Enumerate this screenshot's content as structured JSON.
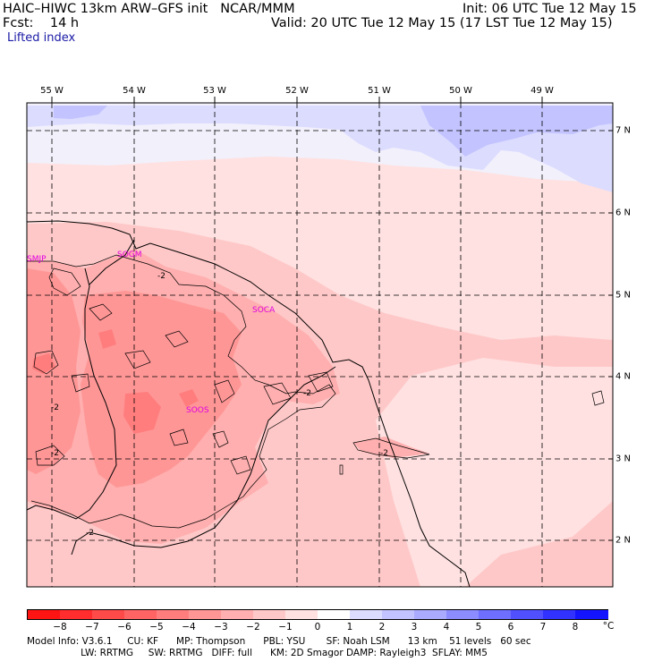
{
  "header": {
    "line1_left": "HAIC–HIWC 13km ARW–GFS init   NCAR/MMM",
    "line1_right": "Init: 06 UTC Tue 12 May 15",
    "line2_left": "Fcst:    14 h",
    "line2_right": "Valid: 20 UTC Tue 12 May 15 (17 LST Tue 12 May 15)",
    "field_name": "Lifted index"
  },
  "map": {
    "longitude_labels": [
      "55 W",
      "54 W",
      "53 W",
      "52 W",
      "51 W",
      "50 W",
      "49 W"
    ],
    "latitude_labels": [
      "7 N",
      "6 N",
      "5 N",
      "4 N",
      "3 N",
      "2 N"
    ],
    "stations": [
      "SMJP",
      "SOGM",
      "SOCA",
      "SOOS"
    ],
    "contour_labels": [
      "-2",
      "-2",
      "-2",
      "-2",
      "-2",
      "-2"
    ]
  },
  "colorbar": {
    "unit": "°C",
    "tick_labels": [
      "−8",
      "−7",
      "−6",
      "−5",
      "−4",
      "−3",
      "−2",
      "−1",
      "0",
      "1",
      "2",
      "3",
      "4",
      "5",
      "6",
      "7",
      "8"
    ],
    "colors": [
      "#ff1414",
      "#ff2d2d",
      "#ff4a4a",
      "#ff6464",
      "#ff7d7d",
      "#ff9696",
      "#ffafaf",
      "#ffc8c8",
      "#ffe1e1",
      "#ffffff",
      "#dcdcff",
      "#c3c3ff",
      "#aaaaff",
      "#8c8cff",
      "#6e6eff",
      "#5050ff",
      "#3232ff",
      "#1414ff"
    ]
  },
  "footer": {
    "line1": "Model Info: V3.6.1     CU: KF      MP: Thompson      PBL: YSU       SF: Noah LSM      13 km    51 levels   60 sec",
    "line2": "                  LW: RRTMG     SW: RRTMG   DIFF: full      KM: 2D Smagor DAMP: Rayleigh3  SFLAY: MM5"
  }
}
